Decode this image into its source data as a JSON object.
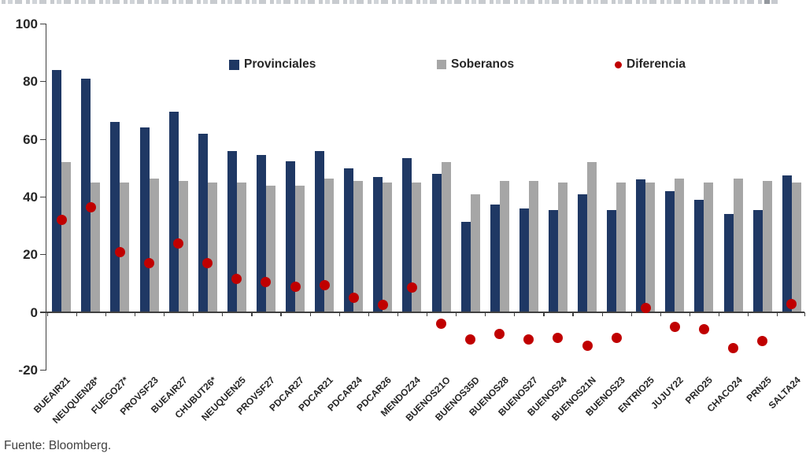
{
  "source": "Fuente: Bloomberg.",
  "colors": {
    "provinciales": "#1f3864",
    "soberanos": "#a6a6a6",
    "diferencia": "#c00000",
    "axis": "#404040",
    "text": "#262626"
  },
  "chart_data": {
    "type": "bar",
    "title": "",
    "xlabel": "",
    "ylabel": "",
    "ylim": [
      -20,
      100
    ],
    "yticks": [
      100,
      80,
      60,
      40,
      20,
      0,
      -20
    ],
    "grid": false,
    "legend_position": "top-center",
    "categories": [
      "BUEAIR21",
      "NEUQUEN28*",
      "FUEGO27*",
      "PROVSF23",
      "BUEAIR27",
      "CHUBUT26*",
      "NEUQUEN25",
      "PROVSF27",
      "PDCAR27",
      "PDCAR21",
      "PDCAR24",
      "PDCAR26",
      "MENDOZ24",
      "BUENOS21O",
      "BUENOS35D",
      "BUENOS28",
      "BUENOS27",
      "BUENOS24",
      "BUENOS21N",
      "BUENOS23",
      "ENTRIO25",
      "JUJUY22",
      "PRIO25",
      "CHACO24",
      "PRN25",
      "SALTA24"
    ],
    "series": [
      {
        "name": "Provinciales",
        "type": "bar",
        "color": "#1f3864",
        "values": [
          84,
          81,
          66,
          64,
          69.5,
          62,
          56,
          54.5,
          52.5,
          56,
          50,
          47,
          53.5,
          48,
          31.5,
          37.5,
          36,
          35.5,
          41,
          35.5,
          46,
          42,
          39,
          34,
          35.5,
          47.5
        ]
      },
      {
        "name": "Soberanos",
        "type": "bar",
        "color": "#a6a6a6",
        "values": [
          52,
          45,
          45,
          46.5,
          45.5,
          45,
          45,
          44,
          44,
          46.5,
          45.5,
          45,
          45,
          52,
          41,
          45.5,
          45.5,
          45,
          52,
          45,
          45,
          46.5,
          45,
          46.5,
          45.5,
          45
        ]
      },
      {
        "name": "Diferencia",
        "type": "scatter",
        "color": "#c00000",
        "values": [
          32,
          36.5,
          21,
          17,
          24,
          17,
          11.5,
          10.5,
          9,
          9.5,
          5,
          2.5,
          8.5,
          -4,
          -9.5,
          -7.5,
          -9.5,
          -9,
          -11.5,
          -9,
          1.5,
          -5,
          -6,
          -12.5,
          -10,
          3
        ]
      }
    ]
  }
}
